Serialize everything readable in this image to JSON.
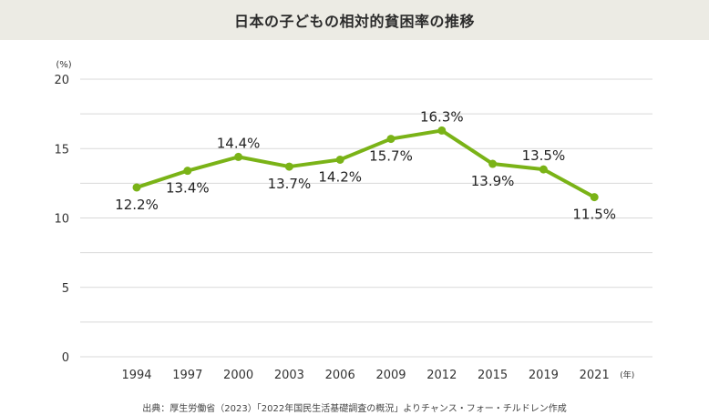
{
  "header": {
    "title": "日本の子どもの相対的貧困率の推移"
  },
  "footer": {
    "source": "出典：厚生労働省（2023）「2022年国民生活基礎調査の概況」よりチャンス・フォー・チルドレン作成"
  },
  "colors": {
    "line": "#7ab317",
    "grid": "#d9d9d9",
    "title_bg": "#ecebe4"
  },
  "chart_data": {
    "type": "line",
    "title": "日本の子どもの相対的貧困率の推移",
    "ylabel": "(%)",
    "xlabel": "(年)",
    "ylim": [
      0,
      20
    ],
    "yticks": [
      "0",
      "5",
      "10",
      "15",
      "20"
    ],
    "grid": true,
    "categories": [
      "1994",
      "1997",
      "2000",
      "2003",
      "2006",
      "2009",
      "2012",
      "2015",
      "2019",
      "2021"
    ],
    "values": [
      12.2,
      13.4,
      14.4,
      13.7,
      14.2,
      15.7,
      16.3,
      13.9,
      13.5,
      11.5
    ],
    "labels": [
      "12.2%",
      "13.4%",
      "14.4%",
      "13.7%",
      "14.2%",
      "15.7%",
      "16.3%",
      "13.9%",
      "13.5%",
      "11.5%"
    ]
  }
}
